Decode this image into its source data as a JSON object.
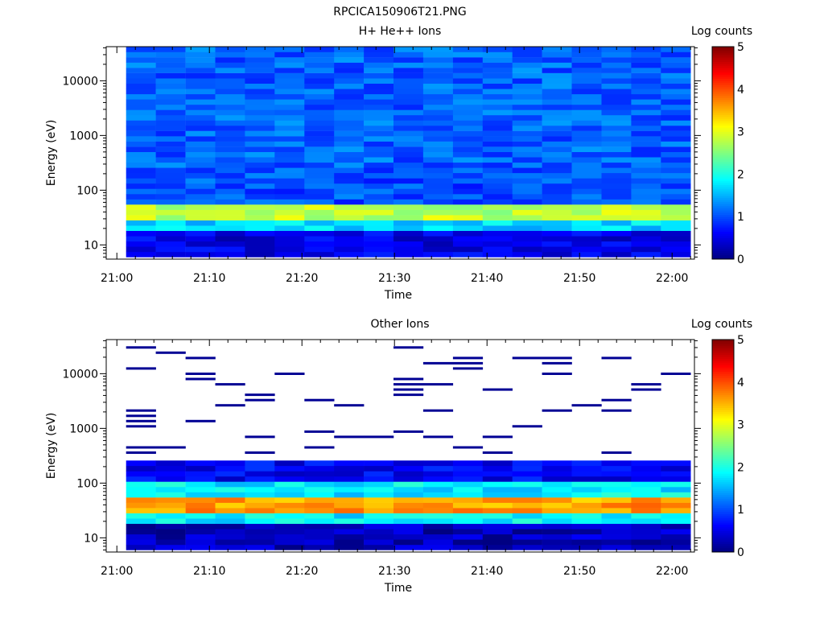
{
  "figure": {
    "title": "RPCICA150906T21.PNG"
  },
  "chart_data": [
    {
      "type": "heatmap",
      "title": "H+ He++ Ions",
      "xlabel": "Time",
      "ylabel": "Energy (eV)",
      "yscale": "log",
      "ylim": [
        5.5,
        42000
      ],
      "x_tick_labels": [
        "21:00",
        "21:10",
        "21:20",
        "21:30",
        "21:40",
        "21:50",
        "22:00"
      ],
      "y_tick_labels": [
        "10",
        "100",
        "1000",
        "10000"
      ],
      "colorbar": {
        "label": "Log counts",
        "range": [
          0,
          5
        ],
        "tick_labels": [
          "0",
          "1",
          "2",
          "3",
          "4",
          "5"
        ]
      },
      "time_start": "21:01",
      "time_end": "22:02",
      "columns": 19,
      "bands": [
        {
          "energy_range": [
            6,
            20
          ],
          "log_counts": 0.5
        },
        {
          "energy_range": [
            20,
            28
          ],
          "log_counts": 1.7
        },
        {
          "energy_range": [
            28,
            55
          ],
          "log_counts": 2.8
        },
        {
          "energy_range": [
            55,
            250
          ],
          "log_counts": 1.0
        },
        {
          "energy_range": [
            250,
            42000
          ],
          "log_counts": 1.1
        }
      ]
    },
    {
      "type": "heatmap",
      "title": "Other Ions",
      "xlabel": "Time",
      "ylabel": "Energy (eV)",
      "yscale": "log",
      "ylim": [
        5.5,
        42000
      ],
      "x_tick_labels": [
        "21:00",
        "21:10",
        "21:20",
        "21:30",
        "21:40",
        "21:50",
        "22:00"
      ],
      "y_tick_labels": [
        "10",
        "100",
        "1000",
        "10000"
      ],
      "colorbar": {
        "label": "Log counts",
        "range": [
          0,
          5
        ],
        "tick_labels": [
          "0",
          "1",
          "2",
          "3",
          "4",
          "5"
        ]
      },
      "time_start": "21:01",
      "time_end": "22:02",
      "columns": 19,
      "bands": [
        {
          "energy_range": [
            6,
            20
          ],
          "log_counts": 0.3
        },
        {
          "energy_range": [
            20,
            26
          ],
          "log_counts": 1.8
        },
        {
          "energy_range": [
            26,
            60
          ],
          "log_counts": 3.6
        },
        {
          "energy_range": [
            60,
            100
          ],
          "log_counts": 1.8
        },
        {
          "energy_range": [
            100,
            250
          ],
          "log_counts": 0.6
        },
        {
          "energy_range": [
            250,
            42000
          ],
          "log_counts": 0.0,
          "sparse": true
        }
      ]
    }
  ]
}
